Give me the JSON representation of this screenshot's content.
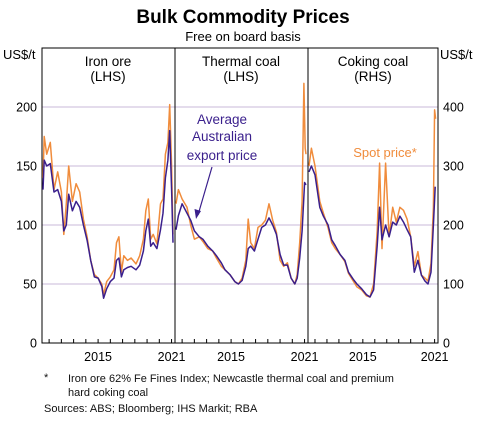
{
  "header": {
    "title": "Bulk Commodity Prices",
    "subtitle": "Free on board basis"
  },
  "axes": {
    "left_unit": "US$/t",
    "right_unit": "US$/t",
    "left_ticks": [
      "0",
      "50",
      "100",
      "150",
      "200"
    ],
    "right_ticks": [
      "0",
      "100",
      "200",
      "300",
      "400"
    ],
    "x_ticks": [
      "2015",
      "2021",
      "2015",
      "2021",
      "2015",
      "2021"
    ]
  },
  "panels": [
    {
      "title": "Iron ore",
      "scale_label": "(LHS)"
    },
    {
      "title": "Thermal coal",
      "scale_label": "(LHS)"
    },
    {
      "title": "Coking coal",
      "scale_label": "(RHS)"
    }
  ],
  "annotations": {
    "average": [
      "Average",
      "Australian",
      "export price"
    ],
    "spot": "Spot price*"
  },
  "colors": {
    "average_series": "#3a1f8c",
    "spot_series": "#f08c3c",
    "gridline": "#c9b8d8"
  },
  "footnote": {
    "marker": "*",
    "line1": "Iron ore 62% Fe Fines Index; Newcastle thermal coal and premium",
    "line2": "hard coking coal",
    "sources": "Sources: ABS; Bloomberg; IHS Markit; RBA"
  },
  "chart_data": [
    {
      "type": "line",
      "title": "Iron ore",
      "axis": "LHS",
      "ylim": [
        0,
        200
      ],
      "xlim": [
        2011.0,
        2021.7
      ],
      "series": [
        {
          "name": "Average Australian export price",
          "points": [
            [
              2011.0,
              130
            ],
            [
              2011.1,
              155
            ],
            [
              2011.3,
              150
            ],
            [
              2011.6,
              152
            ],
            [
              2011.9,
              128
            ],
            [
              2012.2,
              130
            ],
            [
              2012.5,
              120
            ],
            [
              2012.7,
              95
            ],
            [
              2012.9,
              100
            ],
            [
              2013.1,
              126
            ],
            [
              2013.4,
              112
            ],
            [
              2013.7,
              120
            ],
            [
              2014.0,
              115
            ],
            [
              2014.3,
              100
            ],
            [
              2014.6,
              87
            ],
            [
              2014.9,
              70
            ],
            [
              2015.2,
              56
            ],
            [
              2015.5,
              55
            ],
            [
              2015.8,
              48
            ],
            [
              2015.95,
              38
            ],
            [
              2016.2,
              46
            ],
            [
              2016.5,
              52
            ],
            [
              2016.8,
              55
            ],
            [
              2017.0,
              70
            ],
            [
              2017.2,
              72
            ],
            [
              2017.4,
              56
            ],
            [
              2017.6,
              62
            ],
            [
              2017.9,
              64
            ],
            [
              2018.2,
              65
            ],
            [
              2018.6,
              62
            ],
            [
              2018.9,
              66
            ],
            [
              2019.2,
              78
            ],
            [
              2019.4,
              95
            ],
            [
              2019.6,
              105
            ],
            [
              2019.8,
              82
            ],
            [
              2020.0,
              85
            ],
            [
              2020.3,
              80
            ],
            [
              2020.6,
              96
            ],
            [
              2020.8,
              110
            ],
            [
              2021.0,
              140
            ],
            [
              2021.2,
              155
            ],
            [
              2021.35,
              180
            ],
            [
              2021.5,
              130
            ],
            [
              2021.62,
              85
            ]
          ]
        },
        {
          "name": "Spot price*",
          "points": [
            [
              2011.0,
              140
            ],
            [
              2011.1,
              175
            ],
            [
              2011.3,
              160
            ],
            [
              2011.6,
              170
            ],
            [
              2011.9,
              130
            ],
            [
              2012.2,
              145
            ],
            [
              2012.5,
              128
            ],
            [
              2012.7,
              92
            ],
            [
              2012.9,
              118
            ],
            [
              2013.1,
              150
            ],
            [
              2013.4,
              120
            ],
            [
              2013.7,
              135
            ],
            [
              2014.0,
              128
            ],
            [
              2014.3,
              105
            ],
            [
              2014.6,
              90
            ],
            [
              2014.9,
              70
            ],
            [
              2015.2,
              58
            ],
            [
              2015.5,
              55
            ],
            [
              2015.8,
              50
            ],
            [
              2015.95,
              41
            ],
            [
              2016.2,
              52
            ],
            [
              2016.5,
              56
            ],
            [
              2016.8,
              62
            ],
            [
              2017.0,
              85
            ],
            [
              2017.2,
              90
            ],
            [
              2017.4,
              60
            ],
            [
              2017.6,
              74
            ],
            [
              2017.9,
              70
            ],
            [
              2018.2,
              72
            ],
            [
              2018.6,
              67
            ],
            [
              2018.9,
              74
            ],
            [
              2019.2,
              88
            ],
            [
              2019.4,
              112
            ],
            [
              2019.6,
              122
            ],
            [
              2019.8,
              88
            ],
            [
              2020.0,
              92
            ],
            [
              2020.3,
              84
            ],
            [
              2020.6,
              118
            ],
            [
              2020.8,
              122
            ],
            [
              2021.0,
              160
            ],
            [
              2021.2,
              170
            ],
            [
              2021.35,
              202
            ],
            [
              2021.5,
              150
            ],
            [
              2021.62,
              92
            ]
          ]
        }
      ]
    },
    {
      "type": "line",
      "title": "Thermal coal",
      "axis": "LHS",
      "ylim": [
        0,
        200
      ],
      "xlim": [
        2011.0,
        2021.7
      ],
      "series": [
        {
          "name": "Average Australian export price",
          "points": [
            [
              2011.0,
              96
            ],
            [
              2011.2,
              108
            ],
            [
              2011.5,
              118
            ],
            [
              2011.9,
              110
            ],
            [
              2012.2,
              104
            ],
            [
              2012.5,
              95
            ],
            [
              2012.9,
              90
            ],
            [
              2013.2,
              88
            ],
            [
              2013.6,
              82
            ],
            [
              2014.0,
              78
            ],
            [
              2014.3,
              74
            ],
            [
              2014.7,
              68
            ],
            [
              2015.0,
              62
            ],
            [
              2015.4,
              58
            ],
            [
              2015.8,
              52
            ],
            [
              2016.1,
              50
            ],
            [
              2016.4,
              53
            ],
            [
              2016.7,
              65
            ],
            [
              2016.9,
              80
            ],
            [
              2017.1,
              82
            ],
            [
              2017.4,
              78
            ],
            [
              2017.7,
              88
            ],
            [
              2018.0,
              98
            ],
            [
              2018.3,
              100
            ],
            [
              2018.6,
              106
            ],
            [
              2018.9,
              100
            ],
            [
              2019.2,
              92
            ],
            [
              2019.5,
              75
            ],
            [
              2019.8,
              66
            ],
            [
              2020.1,
              66
            ],
            [
              2020.4,
              55
            ],
            [
              2020.7,
              50
            ],
            [
              2020.9,
              55
            ],
            [
              2021.1,
              72
            ],
            [
              2021.3,
              95
            ],
            [
              2021.5,
              136
            ],
            [
              2021.62,
              134
            ]
          ]
        },
        {
          "name": "Spot price*",
          "points": [
            [
              2011.0,
              118
            ],
            [
              2011.2,
              130
            ],
            [
              2011.5,
              122
            ],
            [
              2011.9,
              115
            ],
            [
              2012.2,
              100
            ],
            [
              2012.5,
              88
            ],
            [
              2012.9,
              90
            ],
            [
              2013.2,
              86
            ],
            [
              2013.6,
              80
            ],
            [
              2014.0,
              78
            ],
            [
              2014.3,
              72
            ],
            [
              2014.7,
              65
            ],
            [
              2015.0,
              62
            ],
            [
              2015.4,
              58
            ],
            [
              2015.8,
              52
            ],
            [
              2016.1,
              50
            ],
            [
              2016.4,
              55
            ],
            [
              2016.7,
              70
            ],
            [
              2016.9,
              105
            ],
            [
              2017.1,
              85
            ],
            [
              2017.4,
              80
            ],
            [
              2017.7,
              98
            ],
            [
              2018.0,
              100
            ],
            [
              2018.3,
              104
            ],
            [
              2018.6,
              118
            ],
            [
              2018.9,
              104
            ],
            [
              2019.2,
              94
            ],
            [
              2019.5,
              70
            ],
            [
              2019.8,
              65
            ],
            [
              2020.1,
              68
            ],
            [
              2020.4,
              55
            ],
            [
              2020.7,
              50
            ],
            [
              2020.9,
              58
            ],
            [
              2021.1,
              85
            ],
            [
              2021.3,
              120
            ],
            [
              2021.45,
              220
            ],
            [
              2021.55,
              165
            ],
            [
              2021.62,
              160
            ]
          ]
        }
      ]
    },
    {
      "type": "line",
      "title": "Coking coal",
      "axis": "RHS",
      "ylim": [
        0,
        400
      ],
      "xlim": [
        2011.0,
        2021.7
      ],
      "series": [
        {
          "name": "Average Australian export price",
          "points": [
            [
              2011.0,
              290
            ],
            [
              2011.2,
              300
            ],
            [
              2011.5,
              285
            ],
            [
              2011.9,
              230
            ],
            [
              2012.2,
              215
            ],
            [
              2012.6,
              200
            ],
            [
              2012.9,
              175
            ],
            [
              2013.2,
              165
            ],
            [
              2013.6,
              150
            ],
            [
              2014.0,
              140
            ],
            [
              2014.3,
              120
            ],
            [
              2014.7,
              108
            ],
            [
              2015.0,
              100
            ],
            [
              2015.4,
              92
            ],
            [
              2015.8,
              82
            ],
            [
              2016.1,
              78
            ],
            [
              2016.4,
              90
            ],
            [
              2016.7,
              165
            ],
            [
              2016.9,
              230
            ],
            [
              2017.1,
              175
            ],
            [
              2017.4,
              200
            ],
            [
              2017.7,
              180
            ],
            [
              2018.0,
              205
            ],
            [
              2018.3,
              200
            ],
            [
              2018.6,
              215
            ],
            [
              2018.9,
              205
            ],
            [
              2019.2,
              192
            ],
            [
              2019.5,
              180
            ],
            [
              2019.8,
              120
            ],
            [
              2020.1,
              140
            ],
            [
              2020.4,
              115
            ],
            [
              2020.7,
              105
            ],
            [
              2020.95,
              100
            ],
            [
              2021.2,
              120
            ],
            [
              2021.4,
              200
            ],
            [
              2021.55,
              265
            ]
          ]
        },
        {
          "name": "Spot price*",
          "points": [
            [
              2011.0,
              300
            ],
            [
              2011.2,
              330
            ],
            [
              2011.5,
              300
            ],
            [
              2011.9,
              240
            ],
            [
              2012.2,
              220
            ],
            [
              2012.6,
              195
            ],
            [
              2012.9,
              170
            ],
            [
              2013.2,
              160
            ],
            [
              2013.6,
              150
            ],
            [
              2014.0,
              138
            ],
            [
              2014.3,
              118
            ],
            [
              2014.7,
              105
            ],
            [
              2015.0,
              95
            ],
            [
              2015.4,
              90
            ],
            [
              2015.8,
              80
            ],
            [
              2016.1,
              78
            ],
            [
              2016.4,
              100
            ],
            [
              2016.7,
              190
            ],
            [
              2016.9,
              305
            ],
            [
              2017.1,
              160
            ],
            [
              2017.4,
              305
            ],
            [
              2017.7,
              180
            ],
            [
              2018.0,
              230
            ],
            [
              2018.3,
              205
            ],
            [
              2018.6,
              230
            ],
            [
              2018.9,
              225
            ],
            [
              2019.2,
              210
            ],
            [
              2019.5,
              180
            ],
            [
              2019.8,
              130
            ],
            [
              2020.1,
              155
            ],
            [
              2020.4,
              115
            ],
            [
              2020.7,
              110
            ],
            [
              2020.95,
              105
            ],
            [
              2021.2,
              135
            ],
            [
              2021.4,
              230
            ],
            [
              2021.5,
              395
            ],
            [
              2021.58,
              380
            ]
          ]
        }
      ]
    }
  ]
}
